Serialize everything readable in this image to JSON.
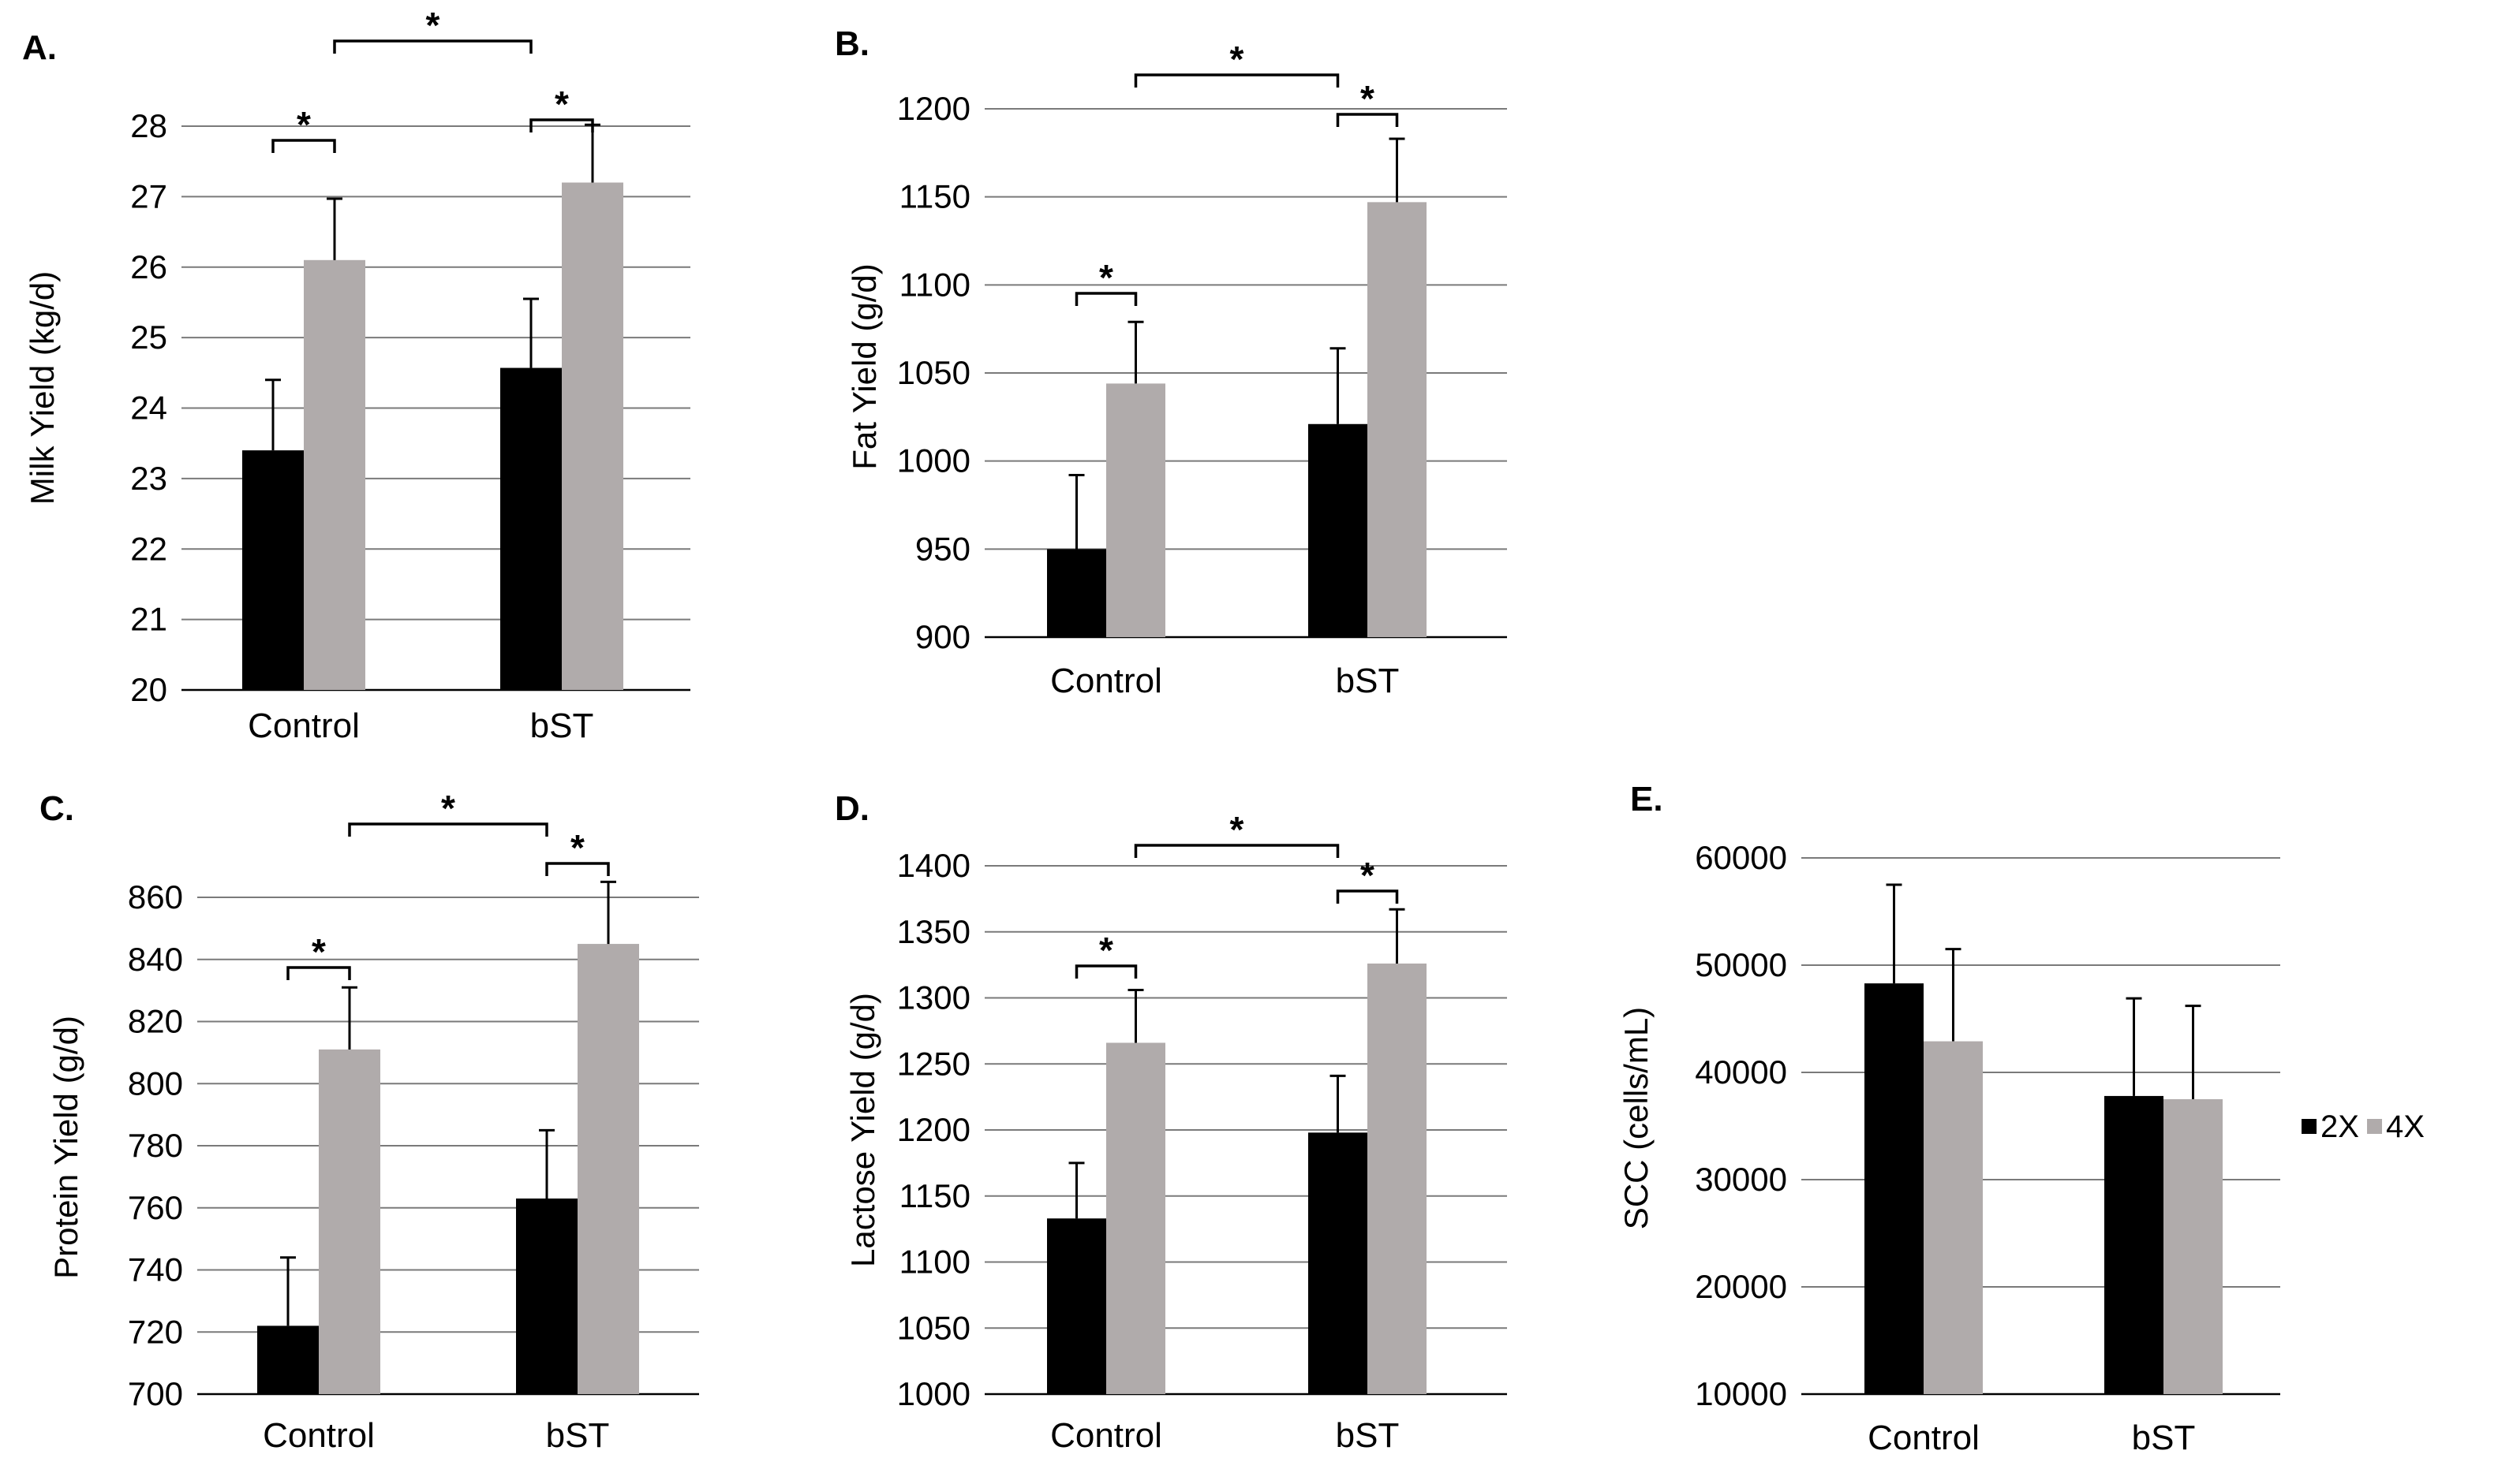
{
  "figure": {
    "legend": {
      "entries": [
        {
          "label": "2X",
          "color": "#000000"
        },
        {
          "label": "4X",
          "color": "#b0abab"
        }
      ]
    }
  },
  "chart_data": [
    {
      "type": "bar",
      "panel": "A.",
      "categories": [
        "Control",
        "bST"
      ],
      "series": [
        {
          "name": "2X",
          "values": [
            23.4,
            24.57
          ],
          "errors": [
            1.0,
            0.98
          ]
        },
        {
          "name": "4X",
          "values": [
            26.1,
            27.2
          ],
          "errors": [
            0.87,
            0.82
          ]
        }
      ],
      "ylabel": "Milk Yield (kg/d)",
      "ylim": [
        20,
        28
      ],
      "yticks": [
        20,
        21,
        22,
        23,
        24,
        25,
        26,
        27,
        28
      ],
      "grid": true,
      "significance": [
        {
          "type": "within",
          "category": 0,
          "label": "*"
        },
        {
          "type": "within",
          "category": 1,
          "label": "*"
        },
        {
          "type": "across",
          "from": [
            0,
            "4X"
          ],
          "to": [
            1,
            "2X"
          ],
          "label": "*"
        }
      ]
    },
    {
      "type": "bar",
      "panel": "B.",
      "categories": [
        "Control",
        "bST"
      ],
      "series": [
        {
          "name": "2X",
          "values": [
            950,
            1021
          ],
          "errors": [
            42,
            43
          ]
        },
        {
          "name": "4X",
          "values": [
            1044,
            1147
          ],
          "errors": [
            35,
            36
          ]
        }
      ],
      "ylabel": "Fat Yield (g/d)",
      "ylim": [
        900,
        1200
      ],
      "yticks": [
        900,
        950,
        1000,
        1050,
        1100,
        1150,
        1200
      ],
      "grid": true,
      "significance": [
        {
          "type": "within",
          "category": 0,
          "label": "*"
        },
        {
          "type": "within",
          "category": 1,
          "label": "*"
        },
        {
          "type": "across",
          "from": [
            0,
            "4X"
          ],
          "to": [
            1,
            "2X"
          ],
          "label": "*"
        }
      ]
    },
    {
      "type": "bar",
      "panel": "C.",
      "categories": [
        "Control",
        "bST"
      ],
      "series": [
        {
          "name": "2X",
          "values": [
            722,
            763
          ],
          "errors": [
            22,
            22
          ]
        },
        {
          "name": "4X",
          "values": [
            811,
            845
          ],
          "errors": [
            20,
            20
          ]
        }
      ],
      "ylabel": "Protein Yield (g/d)",
      "ylim": [
        700,
        860
      ],
      "yticks": [
        700,
        720,
        740,
        760,
        780,
        800,
        820,
        840,
        860
      ],
      "grid": true,
      "significance": [
        {
          "type": "within",
          "category": 0,
          "label": "*"
        },
        {
          "type": "within",
          "category": 1,
          "label": "*"
        },
        {
          "type": "across",
          "from": [
            0,
            "4X"
          ],
          "to": [
            1,
            "2X"
          ],
          "label": "*"
        }
      ]
    },
    {
      "type": "bar",
      "panel": "D.",
      "categories": [
        "Control",
        "bST"
      ],
      "series": [
        {
          "name": "2X",
          "values": [
            1133,
            1198
          ],
          "errors": [
            42,
            43
          ]
        },
        {
          "name": "4X",
          "values": [
            1266,
            1326
          ],
          "errors": [
            40,
            41
          ]
        }
      ],
      "ylabel": "Lactose Yield (g/d)",
      "ylim": [
        1000,
        1400
      ],
      "yticks": [
        1000,
        1050,
        1100,
        1150,
        1200,
        1250,
        1300,
        1350,
        1400
      ],
      "grid": true,
      "significance": [
        {
          "type": "within",
          "category": 0,
          "label": "*"
        },
        {
          "type": "within",
          "category": 1,
          "label": "*"
        },
        {
          "type": "across",
          "from": [
            0,
            "4X"
          ],
          "to": [
            1,
            "2X"
          ],
          "label": "*"
        }
      ]
    },
    {
      "type": "bar",
      "panel": "E.",
      "categories": [
        "Control",
        "bST"
      ],
      "series": [
        {
          "name": "2X",
          "values": [
            48300,
            37800
          ],
          "errors": [
            9200,
            9100
          ]
        },
        {
          "name": "4X",
          "values": [
            42900,
            37500
          ],
          "errors": [
            8600,
            8700
          ]
        }
      ],
      "ylabel": "SCC (cells/mL)",
      "ylim": [
        10000,
        60000
      ],
      "yticks": [
        10000,
        20000,
        30000,
        40000,
        50000,
        60000
      ],
      "grid": true,
      "significance": []
    }
  ]
}
